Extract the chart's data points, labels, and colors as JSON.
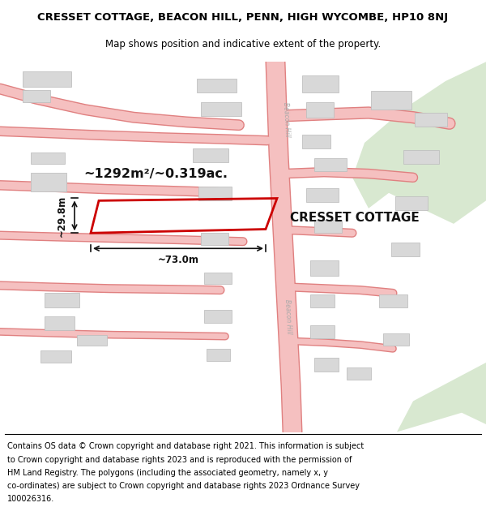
{
  "title": "CRESSET COTTAGE, BEACON HILL, PENN, HIGH WYCOMBE, HP10 8NJ",
  "subtitle": "Map shows position and indicative extent of the property.",
  "footnote_lines": [
    "Contains OS data © Crown copyright and database right 2021. This information is subject",
    "to Crown copyright and database rights 2023 and is reproduced with the permission of",
    "HM Land Registry. The polygons (including the associated geometry, namely x, y",
    "co-ordinates) are subject to Crown copyright and database rights 2023 Ordnance Survey",
    "100026316."
  ],
  "map_bg": "#ffffff",
  "road_color": "#f5c0c0",
  "road_outline": "#e08080",
  "building_fill": "#d8d8d8",
  "building_outline": "#c0c0c0",
  "green_fill": "#d8e8d0",
  "road_label_color": "#aaaaaa",
  "plot_outline_color": "#cc0000",
  "dim_color": "#111111",
  "label_color": "#111111",
  "area_text": "~1292m²/~0.319ac.",
  "width_text": "~73.0m",
  "height_text": "~29.8m",
  "property_name": "CRESSET COTTAGE",
  "title_fontsize": 9.5,
  "subtitle_fontsize": 8.5,
  "footnote_fontsize": 7.0
}
